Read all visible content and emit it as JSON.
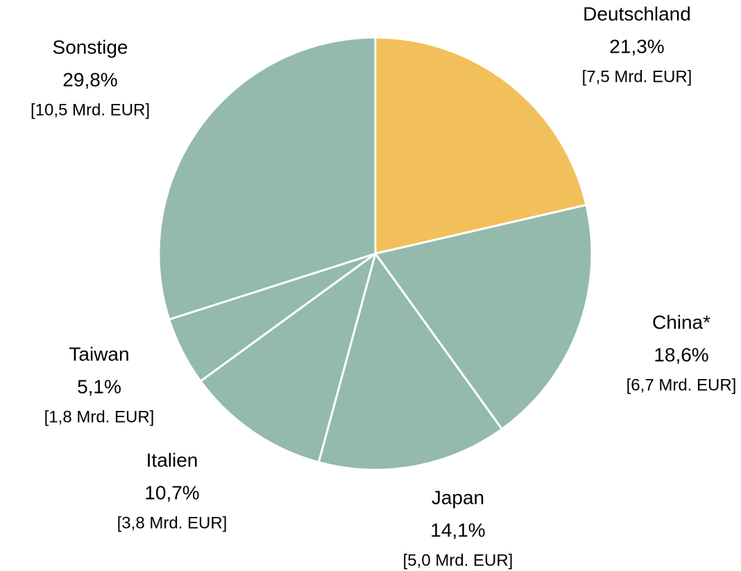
{
  "chart_data": {
    "type": "pie",
    "categories": [
      "Deutschland",
      "China*",
      "Japan",
      "Italien",
      "Taiwan",
      "Sonstige"
    ],
    "values": [
      21.3,
      18.6,
      14.1,
      10.7,
      5.1,
      29.8
    ],
    "value_labels": [
      "21,3%",
      "18,6%",
      "14,1%",
      "10,7%",
      "5,1%",
      "29,8%"
    ],
    "amounts": [
      7.5,
      6.7,
      5.0,
      3.8,
      1.8,
      10.5
    ],
    "amount_labels": [
      "[7,5 Mrd. EUR]",
      "[6,7 Mrd. EUR]",
      "[5,0 Mrd. EUR]",
      "[3,8 Mrd. EUR]",
      "[1,8 Mrd. EUR]",
      "[10,5 Mrd. EUR]"
    ],
    "colors": [
      "#f2c05a",
      "#93baad",
      "#93baad",
      "#93baad",
      "#93baad",
      "#93baad"
    ]
  }
}
